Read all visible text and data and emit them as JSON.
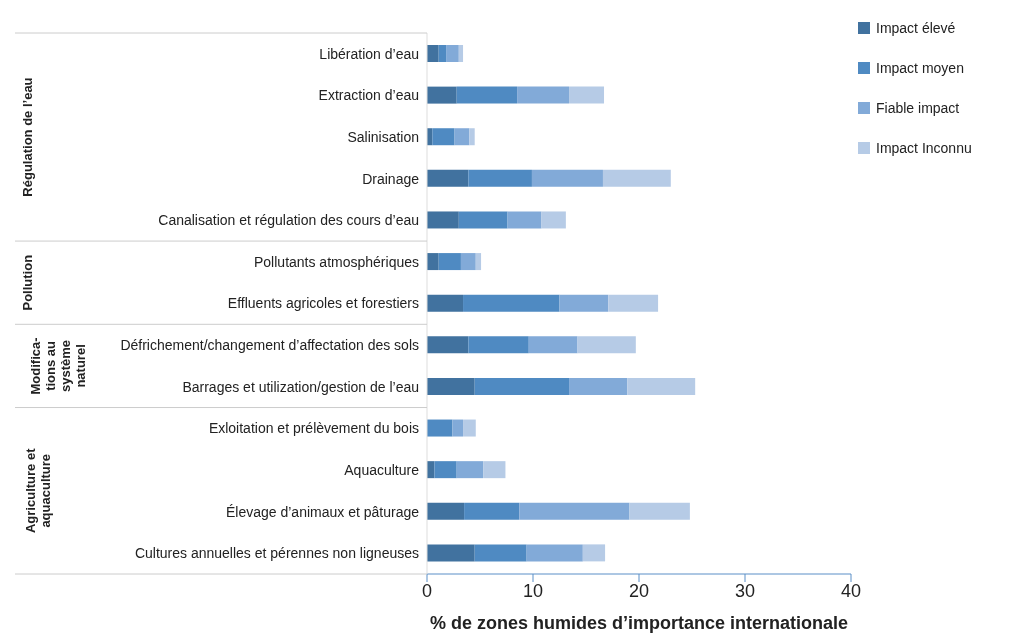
{
  "chart_data": {
    "type": "bar",
    "orientation": "horizontal",
    "stacked": true,
    "xlabel": "% de zones humides d’importance internationale",
    "categories": [
      "Libération d’eau",
      "Extraction d’eau",
      "Salinisation",
      "Drainage",
      "Canalisation et régulation des cours d’eau",
      "Pollutants atmosphériques",
      "Effluents agricoles et forestiers",
      "Défrichement/changement d’affectation des sols",
      "Barrages et utilization/gestion de l’eau",
      "Exloitation et prélèvement du bois",
      "Aquaculture",
      "Élevage d’animaux et pâturage",
      "Cultures annuelles et pérennes non ligneuses"
    ],
    "series": [
      {
        "name": "Impact élevé",
        "color": "#41729f",
        "values": [
          1.1,
          2.8,
          0.5,
          3.9,
          3.0,
          1.1,
          3.4,
          3.9,
          4.5,
          0,
          0.7,
          3.5,
          4.5
        ]
      },
      {
        "name": "Impact moyen",
        "color": "#4f8ac2",
        "values": [
          0.7,
          5.7,
          2.1,
          6.0,
          4.6,
          2.1,
          9.1,
          5.7,
          8.9,
          2.4,
          2.1,
          5.2,
          4.9
        ]
      },
      {
        "name": "Fiable impact",
        "color": "#82aad8",
        "values": [
          1.2,
          4.9,
          1.4,
          6.7,
          3.2,
          1.4,
          4.6,
          4.6,
          5.5,
          1.0,
          2.5,
          10.4,
          5.3
        ]
      },
      {
        "name": "Impact Inconnu",
        "color": "#b6cbe6",
        "values": [
          0.4,
          3.3,
          0.5,
          6.4,
          2.3,
          0.5,
          4.7,
          5.5,
          6.4,
          1.2,
          2.1,
          5.7,
          2.1
        ]
      }
    ],
    "xlim": [
      0,
      40
    ],
    "xticks": [
      0,
      10,
      20,
      30,
      40
    ],
    "legend": "top right",
    "annotations": [
      "Régulation de l’eau",
      "Pollution",
      "Modifica-\ntions au\nsystème\nnaturel",
      "Agriculture et\naquaculture"
    ]
  }
}
